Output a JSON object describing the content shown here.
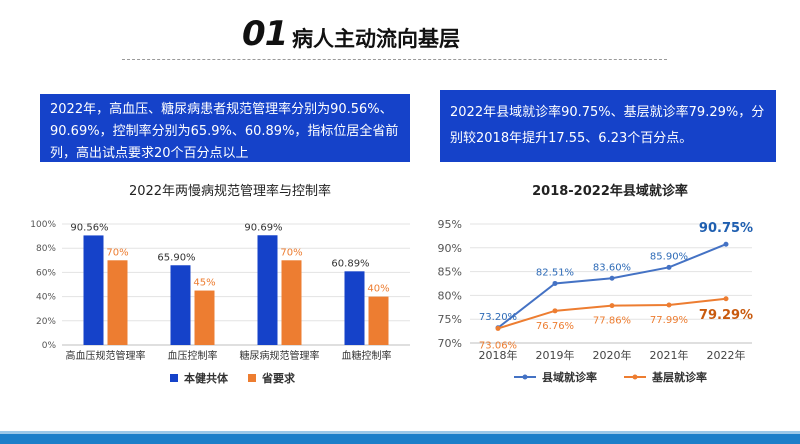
{
  "header": {
    "number": "01",
    "title": "病人主动流向基层"
  },
  "info": {
    "left": "2022年，高血压、糖尿病患者规范管理率分别为90.56%、90.69%，控制率分别为65.9%、60.89%，指标位居全省前列，高出试点要求20个百分点以上",
    "right": "2022年县域就诊率90.75%、基层就诊率79.29%，分别较2018年提升17.55、6.23个百分点。"
  },
  "colors": {
    "blue": "#1542c9",
    "orange": "#ed7d31",
    "lineBlue": "#4472c4"
  },
  "chart_data": [
    {
      "type": "bar",
      "title": "2022年两慢病规范管理率与控制率",
      "categories": [
        "高血压规范管理率",
        "血压控制率",
        "糖尿病规范管理率",
        "血糖控制率"
      ],
      "series": [
        {
          "name": "本健共体",
          "values": [
            90.56,
            65.9,
            90.69,
            60.89
          ],
          "labels": [
            "90.56%",
            "65.90%",
            "90.69%",
            "60.89%"
          ]
        },
        {
          "name": "省要求",
          "values": [
            70,
            45,
            70,
            40
          ],
          "labels": [
            "70%",
            "45%",
            "70%",
            "40%"
          ]
        }
      ],
      "ylim": [
        0,
        100
      ],
      "yticks": [
        "0%",
        "20%",
        "40%",
        "60%",
        "80%",
        "100%"
      ],
      "legend": "bottom"
    },
    {
      "type": "line",
      "title": "2018-2022年县域就诊率",
      "categories": [
        "2018年",
        "2019年",
        "2020年",
        "2021年",
        "2022年"
      ],
      "series": [
        {
          "name": "县域就诊率",
          "values": [
            73.2,
            82.51,
            83.6,
            85.9,
            90.75
          ],
          "labels": [
            "73.20%",
            "82.51%",
            "83.60%",
            "85.90%",
            "90.75%"
          ]
        },
        {
          "name": "基层就诊率",
          "values": [
            73.06,
            76.76,
            77.86,
            77.99,
            79.29
          ],
          "labels": [
            "73.06%",
            "76.76%",
            "77.86%",
            "77.99%",
            "79.29%"
          ]
        }
      ],
      "ylim": [
        70,
        95
      ],
      "yticks": [
        "70%",
        "75%",
        "80%",
        "85%",
        "90%",
        "95%"
      ],
      "legend": "bottom"
    }
  ]
}
